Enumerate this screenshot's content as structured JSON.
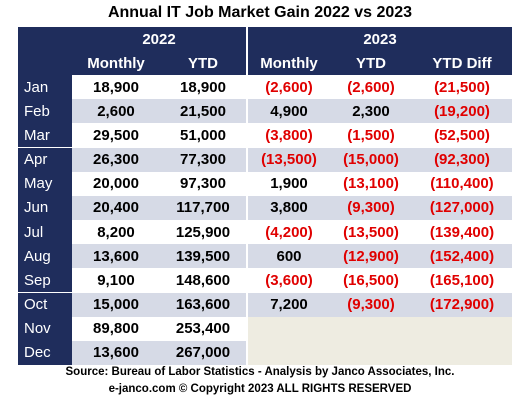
{
  "title": "Annual IT  Job Market  Gain 2022 vs 2023",
  "header": {
    "groups": [
      "2022",
      "2023"
    ],
    "columns": [
      "Monthly",
      "YTD",
      "Monthly",
      "YTD",
      "YTD Diff"
    ]
  },
  "table": {
    "rows": [
      [
        "Jan",
        "18,900",
        "18,900",
        "(2,600)",
        "(2,600)",
        "(21,500)"
      ],
      [
        "Feb",
        "2,600",
        "21,500",
        "4,900",
        "2,300",
        "(19,200)"
      ],
      [
        "Mar",
        "29,500",
        "51,000",
        "(3,800)",
        "(1,500)",
        "(52,500)"
      ],
      [
        "Apr",
        "26,300",
        "77,300",
        "(13,500)",
        "(15,000)",
        "(92,300)"
      ],
      [
        "May",
        "20,000",
        "97,300",
        "1,900",
        "(13,100)",
        "(110,400)"
      ],
      [
        "Jun",
        "20,400",
        "117,700",
        "3,800",
        "(9,300)",
        "(127,000)"
      ],
      [
        "Jul",
        "8,200",
        "125,900",
        "(4,200)",
        "(13,500)",
        "(139,400)"
      ],
      [
        "Aug",
        "13,600",
        "139,500",
        "600",
        "(12,900)",
        "(152,400)"
      ],
      [
        "Sep",
        "9,100",
        "148,600",
        "(3,600)",
        "(16,500)",
        "(165,100)"
      ],
      [
        "Oct",
        "15,000",
        "163,600",
        "7,200",
        "(9,300)",
        "(172,900)"
      ],
      [
        "Nov",
        "89,800",
        "253,400"
      ],
      [
        "Dec",
        "13,600",
        "267,000"
      ]
    ]
  },
  "footer": {
    "source": "Source: Bureau of Labor Statistics - Analysis by Janco Associates, Inc.",
    "copyright": "e-janco.com © Copyright 2023 ALL RIGHTS RESERVED"
  }
}
